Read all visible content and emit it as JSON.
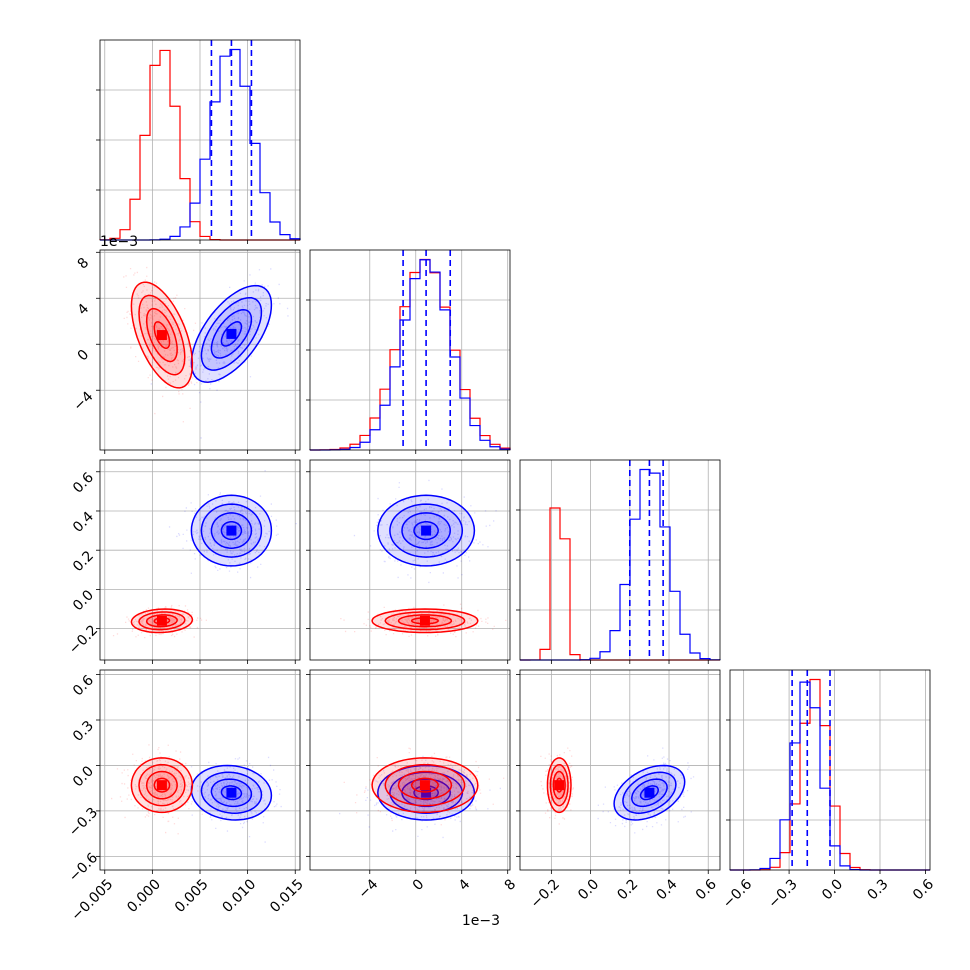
{
  "colors": {
    "series_a": "#0000ff",
    "series_b": "#ff0000",
    "grid": "#b0b0b0"
  },
  "chart_data": {
    "type": "corner",
    "grid": true,
    "parameters": [
      {
        "range": [
          -0.0055,
          0.0155
        ],
        "ticks": [
          -0.005,
          0.0,
          0.005,
          0.01,
          0.015
        ],
        "tick_labels": [
          "−0.005",
          "0.000",
          "0.005",
          "0.010",
          "0.015"
        ],
        "offset_label": ""
      },
      {
        "range": [
          -0.0092,
          0.0082
        ],
        "ticks": [
          -0.004,
          0,
          0.004,
          0.008
        ],
        "tick_labels": [
          "−4",
          "0",
          "4",
          "8"
        ],
        "offset_label": "1e−3"
      },
      {
        "range": [
          -0.36,
          0.66
        ],
        "ticks": [
          -0.2,
          0.0,
          0.2,
          0.4,
          0.6
        ],
        "tick_labels": [
          "−0.2",
          "0.0",
          "0.2",
          "0.4",
          "0.6"
        ],
        "offset_label": ""
      },
      {
        "range": [
          -0.69,
          0.63
        ],
        "ticks": [
          -0.6,
          -0.3,
          0.0,
          0.3,
          0.6
        ],
        "tick_labels": [
          "−0.6",
          "−0.3",
          "0.0",
          "0.3",
          "0.6"
        ],
        "offset_label": ""
      }
    ],
    "series": [
      {
        "color": "#0000ff",
        "means": [
          0.0083,
          0.0009,
          0.3,
          -0.18
        ],
        "stds": [
          0.0021,
          0.0021,
          0.09,
          0.09
        ],
        "correlations": {
          "0-1": 0.6,
          "0-2": 0.0,
          "0-3": -0.1,
          "1-2": 0.0,
          "1-3": 0.0,
          "2-3": 0.4
        },
        "quantile_lines": [
          [
            0.0062,
            0.0083,
            0.0104
          ],
          [
            -0.0011,
            0.0009,
            0.003
          ],
          [
            0.2,
            0.3,
            0.37
          ],
          [
            -0.28,
            -0.18,
            -0.03
          ]
        ]
      },
      {
        "color": "#ff0000",
        "means": [
          0.001,
          0.0008,
          -0.16,
          -0.13
        ],
        "stds": [
          0.0016,
          0.0023,
          0.03,
          0.09
        ],
        "correlations": {
          "0-1": -0.55,
          "0-2": 0.1,
          "0-3": 0.0,
          "1-2": 0.0,
          "1-3": 0.0,
          "2-3": 0.0
        }
      }
    ]
  }
}
